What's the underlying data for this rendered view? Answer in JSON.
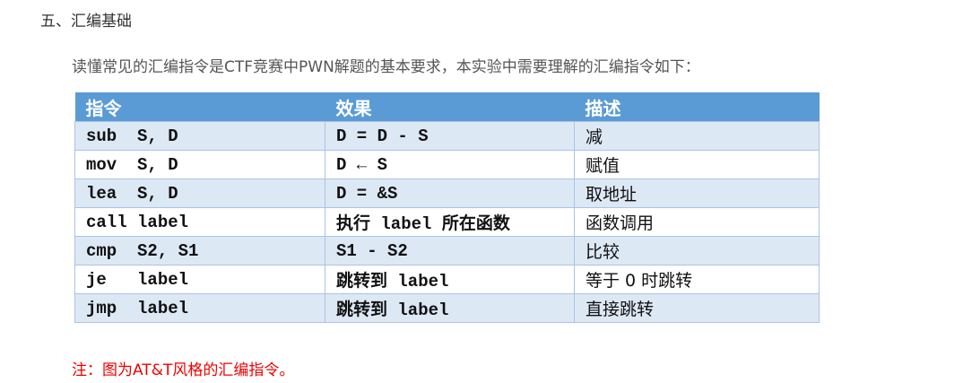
{
  "heading": "五、汇编基础",
  "intro": "读懂常见的汇编指令是CTF竞赛中PWN解题的基本要求，本实验中需要理解的汇编指令如下：",
  "table": {
    "headers": [
      "指令",
      "效果",
      "描述"
    ],
    "rows": [
      [
        "sub  S, D",
        "D = D - S",
        "减"
      ],
      [
        "mov  S, D",
        "D ← S",
        "赋值"
      ],
      [
        "lea  S, D",
        "D = &S",
        "取地址"
      ],
      [
        "call label",
        "执行 label 所在函数",
        "函数调用"
      ],
      [
        "cmp  S2, S1",
        "S1 - S2",
        "比较"
      ],
      [
        "je   label",
        "跳转到 label",
        "等于 0 时跳转"
      ],
      [
        "jmp  label",
        "跳转到 label",
        "直接跳转"
      ]
    ]
  },
  "note": "注：图为AT&T风格的汇编指令。",
  "colors": {
    "header": "#5b9bd5",
    "row_alt": "#dde8f5",
    "note": "#ee0000"
  }
}
